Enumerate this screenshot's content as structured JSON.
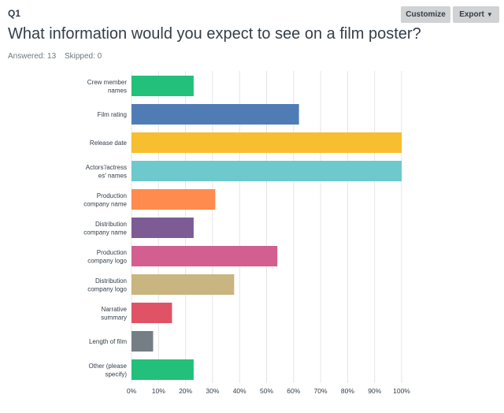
{
  "question": {
    "number": "Q1",
    "title": "What information would you expect to see on a film poster?",
    "answered": "Answered: 13",
    "skipped": "Skipped: 0"
  },
  "toolbar": {
    "customize_label": "Customize",
    "export_label": "Export",
    "export_icon": "caret-down-icon"
  },
  "chart_data": {
    "type": "bar",
    "orientation": "horizontal",
    "title": "",
    "xlabel": "",
    "ylabel": "",
    "xlim": [
      0,
      100
    ],
    "grid": true,
    "tick_labels": [
      "0%",
      "10%",
      "20%",
      "30%",
      "40%",
      "50%",
      "60%",
      "70%",
      "80%",
      "90%",
      "100%"
    ],
    "categories": [
      [
        "Crew member",
        "names"
      ],
      [
        "Film rating"
      ],
      [
        "Release date"
      ],
      [
        "Actors'/actress",
        "es' names"
      ],
      [
        "Production",
        "company name"
      ],
      [
        "Distribution",
        "company name"
      ],
      [
        "Production",
        "company logo"
      ],
      [
        "Distribution",
        "company logo"
      ],
      [
        "Narrative",
        "summary"
      ],
      [
        "Length of film"
      ],
      [
        "Other (please",
        "specify)"
      ]
    ],
    "values": [
      23,
      62,
      100,
      100,
      31,
      23,
      54,
      38,
      15,
      8,
      23
    ],
    "colors": [
      "#22c07a",
      "#507cb6",
      "#f7be2f",
      "#6ec9cc",
      "#ff8b4f",
      "#7d5b94",
      "#d25f90",
      "#c8b57f",
      "#e05366",
      "#757d85",
      "#22c07a"
    ]
  }
}
